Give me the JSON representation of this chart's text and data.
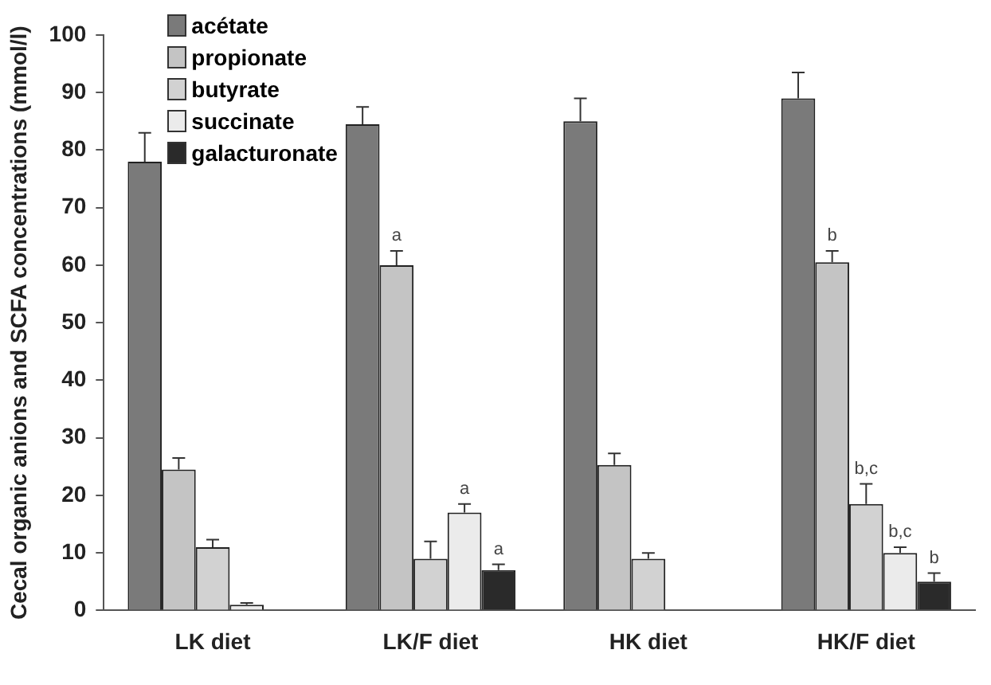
{
  "chart_data": {
    "type": "bar",
    "ylabel": "Cecal organic anions and SCFA concentrations (mmol/l)",
    "categories": [
      "LK diet",
      "LK/F diet",
      "HK diet",
      "HK/F diet"
    ],
    "series": [
      {
        "name": "acétate",
        "color": "#7a7a7a",
        "values": [
          78,
          84.5,
          85,
          89
        ],
        "errors": [
          5,
          3,
          4,
          4.5
        ]
      },
      {
        "name": "propionate",
        "color": "#c4c4c4",
        "values": [
          24.5,
          60,
          25.3,
          60.5
        ],
        "errors": [
          2,
          2.5,
          2,
          2
        ],
        "value_labels": [
          null,
          "a",
          null,
          "b"
        ]
      },
      {
        "name": "butyrate",
        "color": "#d2d2d2",
        "values": [
          11,
          9,
          9,
          18.5
        ],
        "errors": [
          1.3,
          3,
          1,
          3.5
        ],
        "value_labels": [
          null,
          null,
          null,
          "b,c"
        ]
      },
      {
        "name": "succinate",
        "color": "#ebebeb",
        "values": [
          1,
          17,
          null,
          10
        ],
        "errors": [
          0.3,
          1.5,
          null,
          1
        ],
        "value_labels": [
          null,
          "a",
          null,
          "b,c"
        ]
      },
      {
        "name": "galacturonate",
        "color": "#2a2a2a",
        "values": [
          null,
          7,
          null,
          5
        ],
        "errors": [
          null,
          1,
          null,
          1.5
        ],
        "value_labels": [
          null,
          "a",
          null,
          "b"
        ]
      }
    ],
    "ylim": [
      0,
      100
    ],
    "yticks": [
      0,
      10,
      20,
      30,
      40,
      50,
      60,
      70,
      80,
      90,
      100
    ],
    "grid": false,
    "legend": "top left"
  }
}
